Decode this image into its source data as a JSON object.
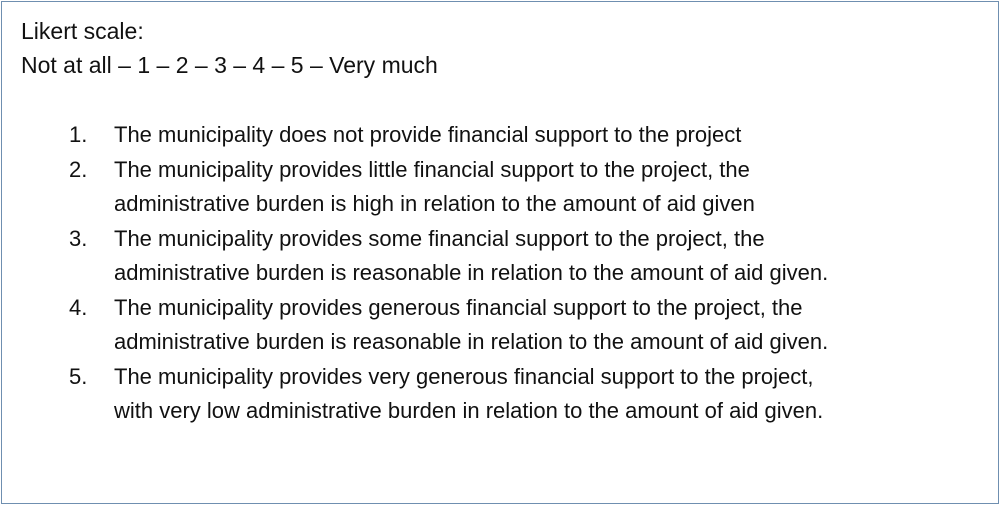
{
  "heading": "Likert scale:",
  "scale": "Not at all – 1 – 2 – 3 – 4 – 5 – Very much",
  "items": [
    {
      "number": "1.",
      "lines": [
        "The municipality does not provide financial support to the project"
      ]
    },
    {
      "number": "2.",
      "lines": [
        "The municipality provides little financial support to the project, the",
        "administrative burden is high in relation to the amount of aid given"
      ]
    },
    {
      "number": "3.",
      "lines": [
        "The municipality provides some financial support to the project, the",
        "administrative burden is reasonable in relation to the amount of aid given."
      ]
    },
    {
      "number": "4.",
      "lines": [
        "The municipality provides generous financial support to the project, the",
        "administrative burden is reasonable in relation to the amount of aid given."
      ]
    },
    {
      "number": "5.",
      "lines": [
        "The municipality provides very generous financial support to the project,",
        "with very low administrative burden in relation to the amount of aid given."
      ]
    }
  ]
}
